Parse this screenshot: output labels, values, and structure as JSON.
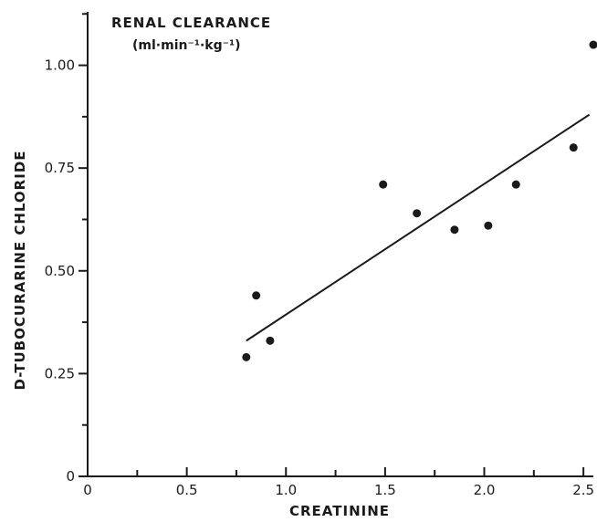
{
  "chart_data": {
    "type": "scatter",
    "title": "RENAL CLEARANCE",
    "units": "(ml·min⁻¹·kg⁻¹)",
    "xlabel": "CREATININE",
    "ylabel": "D-TUBOCURARINE CHLORIDE",
    "xlim": [
      0,
      2.55
    ],
    "ylim": [
      0,
      1.13
    ],
    "x_ticks": [
      0,
      0.5,
      1.0,
      1.5,
      2.0,
      2.5
    ],
    "x_tick_labels": [
      "0",
      "0.5",
      "1.0",
      "1.5",
      "2.0",
      "2.5"
    ],
    "y_ticks": [
      0,
      0.25,
      0.5,
      0.75,
      1.0
    ],
    "y_tick_labels": [
      "0",
      "0.25",
      "0.50",
      "0.75",
      "1.00"
    ],
    "grid": false,
    "points": [
      {
        "x": 0.8,
        "y": 0.29
      },
      {
        "x": 0.85,
        "y": 0.44
      },
      {
        "x": 0.92,
        "y": 0.33
      },
      {
        "x": 1.49,
        "y": 0.71
      },
      {
        "x": 1.66,
        "y": 0.64
      },
      {
        "x": 1.85,
        "y": 0.6
      },
      {
        "x": 2.02,
        "y": 0.61
      },
      {
        "x": 2.16,
        "y": 0.71
      },
      {
        "x": 2.45,
        "y": 0.8
      },
      {
        "x": 2.55,
        "y": 1.05
      }
    ],
    "regression_line": {
      "x": [
        0.8,
        2.53
      ],
      "y": [
        0.33,
        0.88
      ]
    }
  }
}
